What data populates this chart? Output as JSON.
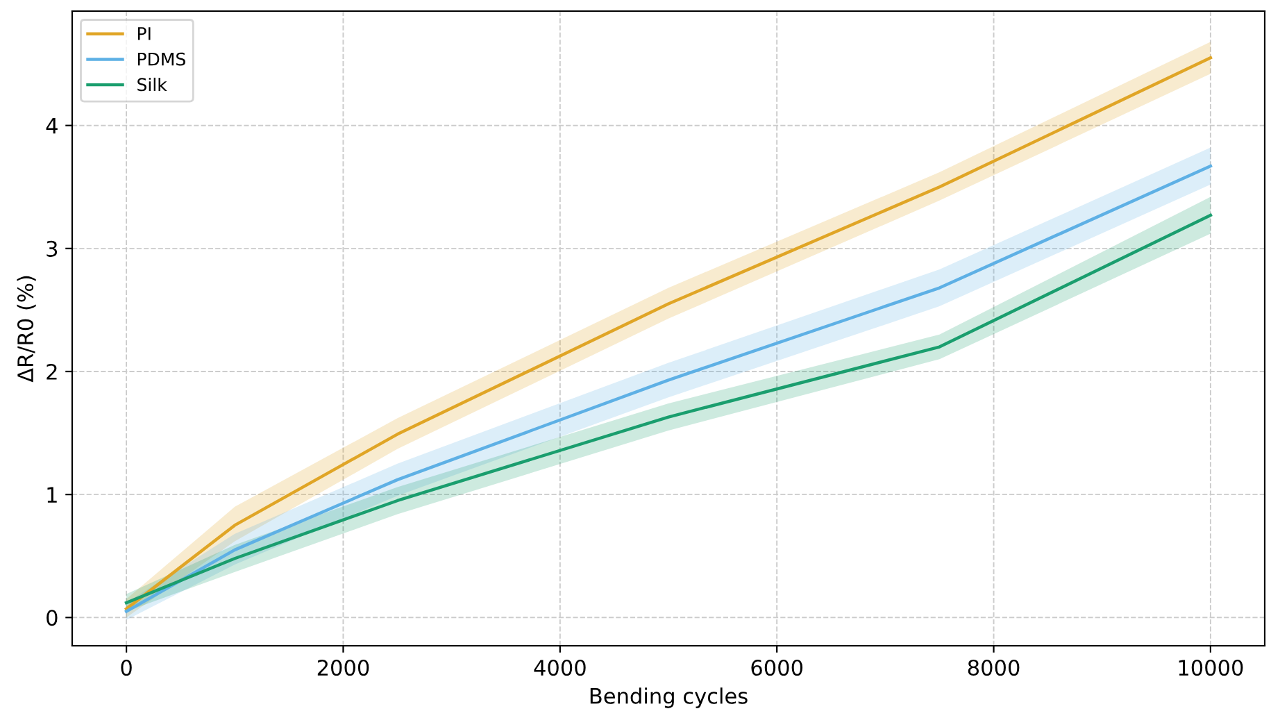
{
  "chart_data": {
    "type": "line",
    "xlabel": "Bending cycles",
    "ylabel": "ΔR/R0 (%)",
    "x": [
      0,
      1000,
      2500,
      5000,
      7500,
      10000
    ],
    "series": [
      {
        "name": "PI",
        "color": "#e0a526",
        "values": [
          0.07,
          0.75,
          1.49,
          2.55,
          3.5,
          4.55
        ],
        "lower": [
          0.0,
          0.62,
          1.37,
          2.43,
          3.39,
          4.42
        ],
        "upper": [
          0.15,
          0.9,
          1.62,
          2.68,
          3.62,
          4.68
        ]
      },
      {
        "name": "PDMS",
        "color": "#5eb0e5",
        "values": [
          0.05,
          0.55,
          1.12,
          1.93,
          2.68,
          3.67
        ],
        "lower": [
          -0.02,
          0.43,
          0.99,
          1.79,
          2.53,
          3.52
        ],
        "upper": [
          0.12,
          0.68,
          1.25,
          2.07,
          2.83,
          3.82
        ]
      },
      {
        "name": "Silk",
        "color": "#1a9e6e",
        "values": [
          0.12,
          0.48,
          0.95,
          1.63,
          2.2,
          3.27
        ],
        "lower": [
          0.05,
          0.37,
          0.84,
          1.52,
          2.1,
          3.12
        ],
        "upper": [
          0.19,
          0.59,
          1.06,
          1.74,
          2.3,
          3.42
        ]
      }
    ],
    "xlim": [
      -500,
      10500
    ],
    "ylim": [
      -0.23,
      4.93
    ],
    "xticks": [
      0,
      2000,
      4000,
      6000,
      8000,
      10000
    ],
    "yticks": [
      0,
      1,
      2,
      3,
      4
    ],
    "grid": true,
    "legend": "top left",
    "marker": "none",
    "line_style": "solid"
  }
}
